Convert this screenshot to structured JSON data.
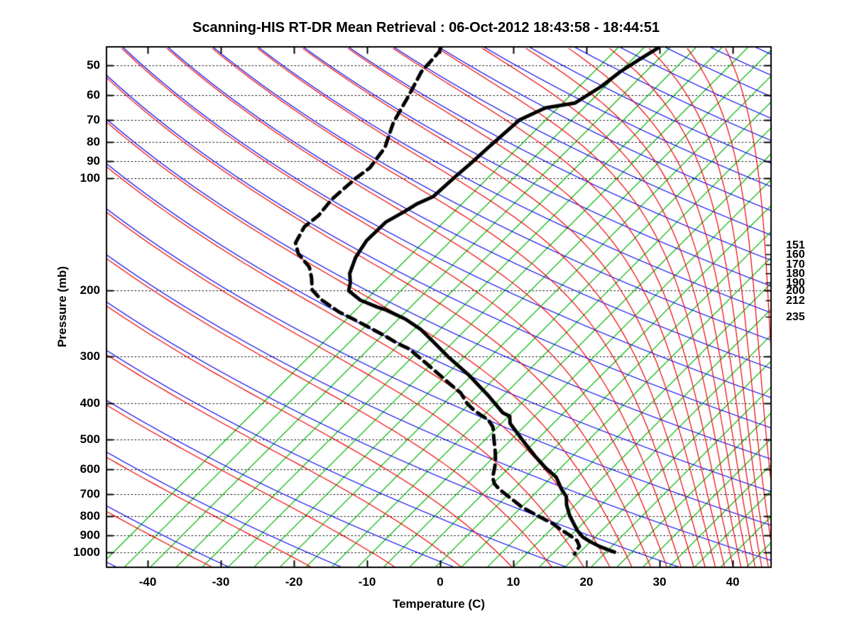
{
  "chart_data": {
    "type": "line",
    "chart_kind": "skew-t log-p sounding",
    "title": "Scanning-HIS RT-DR Mean Retrieval : 06-Oct-2012 18:43:58 - 18:44:51",
    "xlabel": "Temperature (C)",
    "ylabel": "Pressure (mb)",
    "x_range_c": [
      -45,
      45
    ],
    "pressure_range_mb": [
      44,
      1110
    ],
    "grid": true,
    "pressure_gridlines_mb": [
      50,
      60,
      70,
      80,
      90,
      100,
      200,
      300,
      400,
      500,
      600,
      700,
      800,
      900,
      1000
    ],
    "temperature_ticks_c": [
      -40,
      -30,
      -20,
      -10,
      0,
      10,
      20,
      30,
      40
    ],
    "right_pressure_labels_mb": [
      151,
      160,
      170,
      180,
      190,
      200,
      212,
      235
    ],
    "series": [
      {
        "name": "temperature",
        "style": "solid",
        "color": "#000000",
        "points": [
          [
            45,
            -39.2
          ],
          [
            48,
            -40.1
          ],
          [
            52,
            -41.1
          ],
          [
            57,
            -41.7
          ],
          [
            63,
            -43.0
          ],
          [
            65,
            -46.4
          ],
          [
            70,
            -48.3
          ],
          [
            75,
            -48.5
          ],
          [
            83,
            -48.8
          ],
          [
            91,
            -49.0
          ],
          [
            99,
            -49.3
          ],
          [
            112,
            -49.6
          ],
          [
            117,
            -50.8
          ],
          [
            123,
            -51.5
          ],
          [
            131,
            -52.6
          ],
          [
            147,
            -52.7
          ],
          [
            163,
            -51.9
          ],
          [
            180,
            -50.5
          ],
          [
            190,
            -49.2
          ],
          [
            200,
            -48.3
          ],
          [
            212,
            -45.4
          ],
          [
            221,
            -42.2
          ],
          [
            225,
            -40.6
          ],
          [
            238,
            -36.7
          ],
          [
            254,
            -33.1
          ],
          [
            271,
            -30.2
          ],
          [
            300,
            -25.7
          ],
          [
            337,
            -20.2
          ],
          [
            380,
            -15.0
          ],
          [
            424,
            -10.5
          ],
          [
            433,
            -9.1
          ],
          [
            452,
            -8.1
          ],
          [
            500,
            -4.2
          ],
          [
            553,
            -0.2
          ],
          [
            595,
            2.9
          ],
          [
            630,
            5.6
          ],
          [
            679,
            8.0
          ],
          [
            709,
            9.6
          ],
          [
            747,
            10.8
          ],
          [
            798,
            12.7
          ],
          [
            837,
            14.3
          ],
          [
            875,
            15.8
          ],
          [
            910,
            17.4
          ],
          [
            934,
            18.9
          ],
          [
            963,
            20.9
          ],
          [
            985,
            22.7
          ],
          [
            998,
            23.8
          ]
        ]
      },
      {
        "name": "dewpoint",
        "style": "dashed",
        "color": "#000000",
        "points": [
          [
            45,
            -68.9
          ],
          [
            46,
            -68.6
          ],
          [
            52,
            -68.3
          ],
          [
            60,
            -66.8
          ],
          [
            71,
            -65.2
          ],
          [
            83,
            -62.9
          ],
          [
            94,
            -62.2
          ],
          [
            100,
            -62.7
          ],
          [
            114,
            -63.1
          ],
          [
            126,
            -62.7
          ],
          [
            135,
            -63.1
          ],
          [
            149,
            -62.1
          ],
          [
            159,
            -60.3
          ],
          [
            173,
            -56.9
          ],
          [
            185,
            -55.1
          ],
          [
            199,
            -53.4
          ],
          [
            211,
            -50.9
          ],
          [
            228,
            -46.7
          ],
          [
            241,
            -43.0
          ],
          [
            251,
            -40.4
          ],
          [
            263,
            -37.4
          ],
          [
            277,
            -34.3
          ],
          [
            286,
            -32.1
          ],
          [
            313,
            -27.7
          ],
          [
            352,
            -22.1
          ],
          [
            375,
            -19.0
          ],
          [
            401,
            -16.6
          ],
          [
            419,
            -14.6
          ],
          [
            443,
            -11.5
          ],
          [
            463,
            -9.9
          ],
          [
            495,
            -8.3
          ],
          [
            537,
            -6.3
          ],
          [
            568,
            -5.0
          ],
          [
            595,
            -4.1
          ],
          [
            630,
            -3.1
          ],
          [
            655,
            -2.0
          ],
          [
            679,
            -0.5
          ],
          [
            709,
            1.7
          ],
          [
            757,
            5.0
          ],
          [
            798,
            8.3
          ],
          [
            837,
            11.4
          ],
          [
            871,
            13.5
          ],
          [
            902,
            15.5
          ],
          [
            930,
            17.1
          ],
          [
            963,
            18.2
          ],
          [
            1010,
            18.6
          ]
        ]
      }
    ],
    "background": {
      "skew_deg": 45,
      "isotherms": {
        "color": "#00b400",
        "t_at_bottom_start_c": -44.7,
        "t_step_c": 3.544,
        "count": 27
      },
      "dry_adiabats": {
        "color": "#0000ee",
        "theta_k_start": 210,
        "theta_k_step": 15,
        "theta_k_end": 600
      },
      "moist_adiabats": {
        "color": "#ee0000",
        "theta_e_k_start": 210,
        "theta_e_k_step": 15,
        "theta_e_k_end": 600
      },
      "gridline_color": "#000000"
    }
  },
  "axes": {
    "pressure": {
      "label": "Pressure (mb)"
    },
    "temperature": {
      "label": "Temperature (C)"
    }
  }
}
